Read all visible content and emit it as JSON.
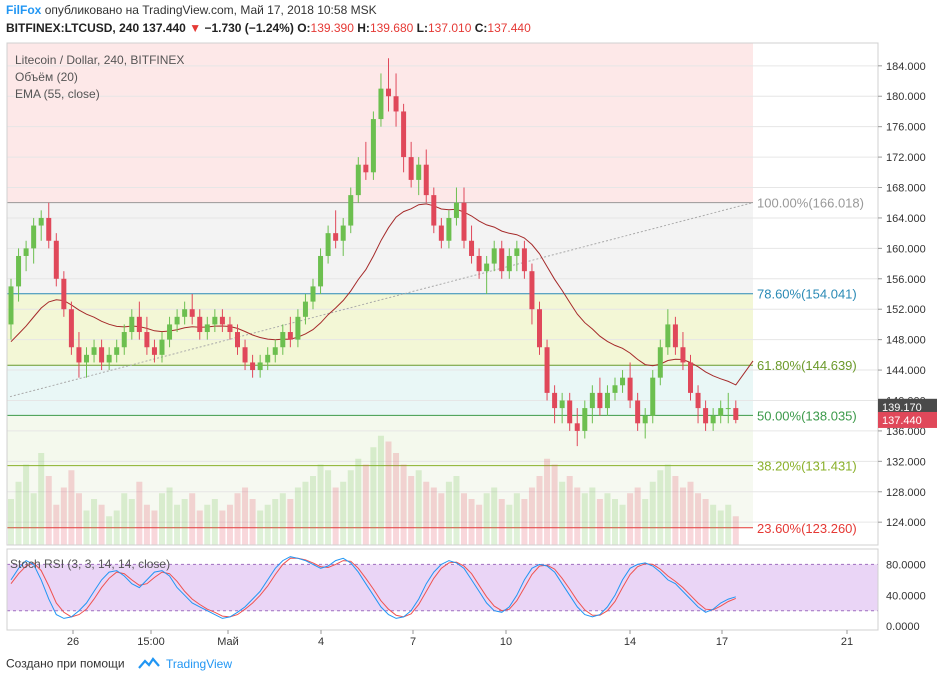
{
  "header": {
    "author": "FilFox",
    "published_text": "опубликовано на TradingView.com, Май 17, 2018 10:58 MSK",
    "symbol": "BITFINEX:LTCUSD, 240",
    "last": "137.440",
    "change": "−1.730 (−1.24%)",
    "o_label": "O:",
    "o_value": "139.390",
    "h_label": "H:",
    "h_value": "139.680",
    "l_label": "L:",
    "l_value": "137.010",
    "c_label": "C:",
    "c_value": "137.440"
  },
  "legend": {
    "title": "Litecoin / Dollar, 240, BITFINEX",
    "volume": "Объём (20)",
    "ema": "EMA (55, close)",
    "stoch": "Stoch RSI (3, 3, 14, 14, close)"
  },
  "footer": {
    "created_with": "Создано при помощи",
    "brand": "TradingView"
  },
  "colors": {
    "up": "#6cbf4f",
    "down": "#e0485a",
    "ema": "#a52a2a",
    "rsi_k": "#2196f3",
    "rsi_d": "#ef5350",
    "accent": "#2196f3"
  },
  "chart_data": {
    "type": "candlestick",
    "price_axis": {
      "min": 121,
      "max": 187,
      "ticks": [
        "184.000",
        "180.000",
        "176.000",
        "172.000",
        "168.000",
        "164.000",
        "160.000",
        "156.000",
        "152.000",
        "148.000",
        "144.000",
        "140.000",
        "136.000",
        "132.000",
        "128.000",
        "124.000"
      ]
    },
    "x_ticks": [
      "26",
      "15:00",
      "Май",
      "4",
      "7",
      "10",
      "14",
      "17",
      "21"
    ],
    "last_price_label": "137.440",
    "ema_price_label": "139.170",
    "fib_levels": [
      {
        "level": 166.018,
        "label": "100.00%(166.018)",
        "color": "#999999",
        "fill": "#fde8e8"
      },
      {
        "level": 154.041,
        "label": "78.60%(154.041)",
        "color": "#2a8ab5",
        "fill": "#f3f3f3"
      },
      {
        "level": 144.639,
        "label": "61.80%(144.639)",
        "color": "#6b9a2a",
        "fill": "#f3f7d6"
      },
      {
        "level": 138.035,
        "label": "50.00%(138.035)",
        "color": "#3c9a4a",
        "fill": "#e9f7f6"
      },
      {
        "level": 131.431,
        "label": "38.20%(131.431)",
        "color": "#8ab02a",
        "fill": "#f4f9ed"
      },
      {
        "level": 123.26,
        "label": "23.60%(123.260)",
        "color": "#e53935",
        "fill": "#f6f9f1"
      }
    ],
    "candles": [
      [
        150,
        156,
        148,
        155
      ],
      [
        155,
        160,
        153,
        159
      ],
      [
        159,
        161,
        157,
        160
      ],
      [
        160,
        164,
        158,
        163
      ],
      [
        163,
        165,
        161,
        164
      ],
      [
        164,
        166,
        160,
        161
      ],
      [
        161,
        162,
        155,
        156
      ],
      [
        156,
        157,
        151,
        152
      ],
      [
        152,
        153,
        146,
        147
      ],
      [
        147,
        149,
        143,
        145
      ],
      [
        145,
        147,
        143,
        146
      ],
      [
        146,
        148,
        145,
        147
      ],
      [
        147,
        148,
        144,
        145
      ],
      [
        145,
        147,
        144,
        146
      ],
      [
        146,
        148,
        145,
        147
      ],
      [
        147,
        150,
        146,
        149
      ],
      [
        149,
        152,
        148,
        151
      ],
      [
        151,
        153,
        148,
        149
      ],
      [
        149,
        151,
        146,
        147
      ],
      [
        147,
        148,
        145,
        146
      ],
      [
        146,
        149,
        145,
        148
      ],
      [
        148,
        151,
        147,
        150
      ],
      [
        150,
        152,
        149,
        151
      ],
      [
        151,
        153,
        150,
        152
      ],
      [
        152,
        154,
        150,
        151
      ],
      [
        151,
        152,
        148,
        149
      ],
      [
        149,
        151,
        148,
        150
      ],
      [
        150,
        152,
        149,
        151
      ],
      [
        151,
        152,
        149,
        150
      ],
      [
        150,
        151,
        148,
        149
      ],
      [
        149,
        150,
        146,
        147
      ],
      [
        147,
        148,
        144,
        145
      ],
      [
        145,
        146,
        143,
        144
      ],
      [
        144,
        146,
        143,
        145
      ],
      [
        145,
        147,
        144,
        146
      ],
      [
        146,
        148,
        145,
        147
      ],
      [
        147,
        150,
        146,
        149
      ],
      [
        149,
        151,
        147,
        148
      ],
      [
        148,
        152,
        147,
        151
      ],
      [
        151,
        154,
        150,
        153
      ],
      [
        153,
        156,
        152,
        155
      ],
      [
        155,
        160,
        154,
        159
      ],
      [
        159,
        163,
        158,
        162
      ],
      [
        162,
        165,
        160,
        161
      ],
      [
        161,
        164,
        159,
        163
      ],
      [
        163,
        168,
        162,
        167
      ],
      [
        167,
        172,
        166,
        171
      ],
      [
        171,
        174,
        169,
        170
      ],
      [
        170,
        178,
        169,
        177
      ],
      [
        177,
        183,
        176,
        181
      ],
      [
        181,
        185,
        178,
        180
      ],
      [
        180,
        183,
        176,
        178
      ],
      [
        178,
        179,
        170,
        172
      ],
      [
        172,
        174,
        168,
        169
      ],
      [
        169,
        172,
        167,
        171
      ],
      [
        171,
        173,
        166,
        167
      ],
      [
        167,
        168,
        162,
        163
      ],
      [
        163,
        164,
        160,
        161
      ],
      [
        161,
        165,
        160,
        164
      ],
      [
        164,
        168,
        163,
        166
      ],
      [
        166,
        168,
        160,
        161
      ],
      [
        161,
        163,
        158,
        159
      ],
      [
        159,
        160,
        156,
        157
      ],
      [
        157,
        159,
        154,
        158
      ],
      [
        158,
        161,
        157,
        160
      ],
      [
        160,
        161,
        156,
        157
      ],
      [
        157,
        160,
        156,
        159
      ],
      [
        159,
        161,
        157,
        160
      ],
      [
        160,
        161,
        156,
        157
      ],
      [
        157,
        158,
        150,
        152
      ],
      [
        152,
        153,
        146,
        147
      ],
      [
        147,
        148,
        140,
        141
      ],
      [
        141,
        142,
        137,
        139
      ],
      [
        139,
        141,
        137,
        140
      ],
      [
        140,
        141,
        136,
        137
      ],
      [
        137,
        139,
        134,
        136
      ],
      [
        136,
        140,
        135,
        139
      ],
      [
        139,
        142,
        137,
        141
      ],
      [
        141,
        143,
        138,
        139
      ],
      [
        139,
        142,
        138,
        141
      ],
      [
        141,
        143,
        140,
        142
      ],
      [
        142,
        144,
        141,
        143
      ],
      [
        143,
        145,
        139,
        140
      ],
      [
        140,
        141,
        136,
        137
      ],
      [
        137,
        139,
        135,
        138
      ],
      [
        138,
        144,
        137,
        143
      ],
      [
        143,
        148,
        142,
        147
      ],
      [
        147,
        152,
        146,
        150
      ],
      [
        150,
        151,
        146,
        147
      ],
      [
        147,
        149,
        144,
        145
      ],
      [
        145,
        146,
        140,
        141
      ],
      [
        141,
        142,
        137,
        139
      ],
      [
        139,
        140,
        136,
        137
      ],
      [
        137,
        139,
        136,
        138
      ],
      [
        138,
        140,
        137,
        139
      ],
      [
        139,
        141,
        137,
        139
      ],
      [
        139,
        140,
        137,
        137.44
      ]
    ],
    "volume_max": 100,
    "volumes": [
      40,
      55,
      70,
      45,
      80,
      60,
      35,
      50,
      65,
      45,
      30,
      40,
      35,
      25,
      30,
      45,
      40,
      55,
      35,
      30,
      45,
      50,
      35,
      40,
      45,
      30,
      35,
      40,
      30,
      35,
      45,
      50,
      40,
      30,
      35,
      40,
      45,
      40,
      50,
      55,
      60,
      70,
      65,
      50,
      55,
      65,
      75,
      70,
      85,
      95,
      90,
      80,
      70,
      60,
      65,
      55,
      50,
      45,
      55,
      60,
      45,
      40,
      35,
      45,
      50,
      40,
      35,
      45,
      40,
      50,
      60,
      75,
      70,
      55,
      60,
      50,
      45,
      50,
      40,
      45,
      40,
      35,
      45,
      50,
      40,
      55,
      65,
      70,
      60,
      50,
      55,
      45,
      40,
      35,
      30,
      35,
      25
    ],
    "rsi_axis": {
      "min": -5,
      "max": 100,
      "ticks": [
        "80.0000",
        "40.0000",
        "0.0000"
      ],
      "bands": [
        80,
        20
      ]
    },
    "rsi_k": [
      60,
      75,
      85,
      80,
      60,
      35,
      15,
      10,
      12,
      20,
      30,
      45,
      60,
      70,
      72,
      65,
      55,
      50,
      60,
      70,
      72,
      65,
      50,
      40,
      30,
      25,
      20,
      15,
      10,
      12,
      18,
      25,
      35,
      45,
      60,
      75,
      85,
      90,
      88,
      85,
      80,
      75,
      78,
      85,
      88,
      82,
      70,
      55,
      40,
      25,
      15,
      10,
      12,
      20,
      35,
      55,
      70,
      80,
      85,
      82,
      75,
      60,
      45,
      30,
      20,
      18,
      25,
      40,
      60,
      75,
      80,
      78,
      70,
      55,
      40,
      25,
      15,
      12,
      15,
      25,
      40,
      60,
      75,
      80,
      82,
      78,
      70,
      60,
      55,
      45,
      35,
      25,
      18,
      22,
      30,
      35,
      38
    ],
    "rsi_d": [
      55,
      68,
      78,
      82,
      72,
      52,
      30,
      18,
      12,
      15,
      22,
      35,
      50,
      62,
      70,
      68,
      60,
      53,
      55,
      63,
      70,
      68,
      58,
      45,
      35,
      28,
      22,
      18,
      13,
      12,
      15,
      22,
      30,
      40,
      52,
      67,
      80,
      88,
      88,
      86,
      82,
      77,
      76,
      80,
      85,
      84,
      75,
      62,
      48,
      33,
      22,
      14,
      12,
      16,
      28,
      45,
      62,
      75,
      82,
      83,
      78,
      68,
      53,
      38,
      26,
      20,
      22,
      33,
      50,
      67,
      78,
      79,
      74,
      62,
      48,
      33,
      21,
      14,
      14,
      20,
      32,
      50,
      67,
      77,
      81,
      80,
      74,
      65,
      58,
      50,
      40,
      30,
      22,
      21,
      26,
      32,
      36
    ]
  }
}
